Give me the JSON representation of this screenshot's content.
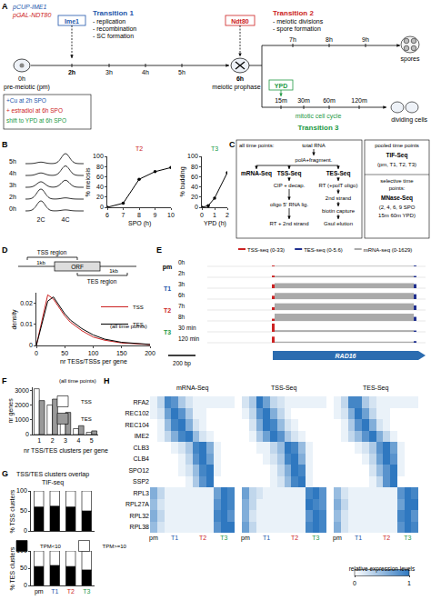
{
  "panel_letters": [
    "A",
    "B",
    "C",
    "D",
    "E",
    "F",
    "G",
    "H"
  ],
  "group_colors": {
    "pm": "#000000",
    "T1": "#2255aa",
    "T2": "#cc2222",
    "T3": "#229944"
  },
  "diagram_A": {
    "constructs": [
      {
        "text": "pCUP-IME1",
        "color": "#2255aa"
      },
      {
        "text": "pGAL-NDT80",
        "color": "#cc2222"
      }
    ],
    "ime1": {
      "text": "Ime1",
      "color": "#2255aa"
    },
    "ndt80": {
      "text": "Ndt80",
      "color": "#cc2222"
    },
    "ypd": {
      "text": "YPD",
      "color": "#229944"
    },
    "transition1": {
      "title": "Transition 1",
      "color": "#2255aa",
      "items": [
        "- replication",
        "- recombination",
        "- SC formation"
      ]
    },
    "transition2": {
      "title": "Transition 2",
      "color": "#cc2222",
      "items": [
        "- meiotic divisions",
        "- spore formation"
      ]
    },
    "transition3": {
      "title": "Transition 3",
      "color": "#229944",
      "items": [
        "mitotic cell cycle"
      ]
    },
    "main_times": [
      "0h",
      "2h",
      "3h",
      "4h",
      "5h",
      "6h"
    ],
    "meiotic_times": [
      "7h",
      "8h",
      "9h"
    ],
    "mitotic_times": [
      "15m",
      "30m",
      "60m",
      "120m"
    ],
    "stage_labels": [
      "pre-meiotic (pm)",
      "meiotic prophase",
      "spores",
      "dividing cells"
    ],
    "treatments": [
      {
        "text": "+Cu at 2h SPO",
        "color": "#2255aa"
      },
      {
        "text": "+ estradiol at 6h SPO",
        "color": "#cc2222"
      },
      {
        "text": "shift to YPD at 6h SPO",
        "color": "#229944"
      }
    ]
  },
  "diagram_B": {
    "peak_labels": [
      "2C",
      "4C"
    ],
    "rows": [
      {
        "time": "5h",
        "2C": 0.15,
        "4C": 1
      },
      {
        "time": "4h",
        "2C": 0.25,
        "4C": 0.95
      },
      {
        "time": "3h",
        "2C": 0.55,
        "4C": 0.7
      },
      {
        "time": "2h",
        "2C": 1,
        "4C": 0.12
      },
      {
        "time": "0h",
        "2C": 1,
        "4C": 0.1
      }
    ]
  },
  "diagram_C": {
    "all_label": "all time points:",
    "total": "total RNA",
    "fragment": "polA+fragment.",
    "methods": [
      {
        "name": "mRNA-Seq"
      },
      {
        "name": "TSS-Seq",
        "steps": [
          "CIP + decap.",
          "oligo 5' RNA lig.",
          "RT + 2nd strand"
        ]
      },
      {
        "name": "TES-Seq",
        "steps": [
          "RT (+polT oligo)",
          "2nd strand",
          "biotin capture",
          "GsuI elution"
        ]
      }
    ],
    "pooled": {
      "label": "pooled time points",
      "method": "TIF-Seq",
      "detail": [
        "(pm, T1, T2, T3)"
      ]
    },
    "selective": {
      "label": "selective time points:",
      "method": "MNase-Seq",
      "detail": [
        "(2, 4, 6, 9 SPO",
        "15m 60m YPD)"
      ]
    }
  },
  "diagram_D": {
    "tss_region": "TSS region",
    "tes_region": "TES region",
    "orf": "ORF",
    "distances": [
      "1kb",
      "1kb"
    ]
  },
  "diagram_E": {
    "legend": [
      {
        "label": "TSS-seq (0-33)",
        "range": [
          0,
          33
        ],
        "color": "#cc2222"
      },
      {
        "label": "TES-seq (0-5.6)",
        "range": [
          0,
          5.6
        ],
        "color": "#1f2f8f"
      },
      {
        "label": "mRNA-seq (0-1629)",
        "range": [
          0,
          1629
        ],
        "color": "#aaaaaa"
      }
    ],
    "tracks": [
      {
        "group": "pm",
        "time": "0h",
        "values": [
          3,
          0.5,
          80
        ]
      },
      {
        "group": "pm",
        "time": "2h",
        "values": [
          6,
          0.8,
          250
        ]
      },
      {
        "group": "T1",
        "time": "3h",
        "values": [
          14,
          2.5,
          900
        ]
      },
      {
        "group": "T1",
        "time": "6h",
        "values": [
          12,
          3,
          1100
        ]
      },
      {
        "group": "T2",
        "time": "7h",
        "values": [
          10,
          2.8,
          1200
        ]
      },
      {
        "group": "T2",
        "time": "8h",
        "values": [
          8,
          2.5,
          1300
        ]
      },
      {
        "group": "T3",
        "time": "30 min",
        "values": [
          30,
          0.8,
          300
        ]
      },
      {
        "group": "T3",
        "time": "120 min",
        "values": [
          22,
          1,
          200
        ]
      }
    ],
    "gene": "RAD16",
    "gene_color": "#2b6cb0",
    "scale_bar": "200 bp"
  },
  "chart_data": [
    {
      "type": "line",
      "title": "T2",
      "x": [
        6,
        7,
        8,
        9,
        10
      ],
      "values": [
        0,
        8,
        55,
        70,
        78
      ],
      "color": "#000000",
      "marker": "circle",
      "xlim": [
        6,
        10
      ],
      "xticks": [
        6,
        7,
        8,
        9,
        10
      ],
      "ylim": [
        0,
        100
      ],
      "yticks": [
        0,
        20,
        40,
        60,
        80,
        100
      ],
      "x_label": "SPO (h)",
      "y_label": "% meiosis"
    },
    {
      "type": "line",
      "title": "T3",
      "x": [
        0,
        0.5,
        1,
        2
      ],
      "values": [
        0,
        3,
        18,
        68
      ],
      "color": "#000000",
      "marker": "circle",
      "xlim": [
        0,
        2
      ],
      "xticks": [
        0,
        1,
        2
      ],
      "ylim": [
        0,
        100
      ],
      "yticks": [
        0,
        20,
        40,
        60,
        80,
        100
      ],
      "x_label": "YPD (h)",
      "y_label": "% budding"
    },
    {
      "type": "line",
      "x": [
        0,
        10,
        20,
        30,
        40,
        50,
        60,
        80,
        100,
        120,
        150,
        200
      ],
      "series": [
        {
          "name": "TSS",
          "color": "#cc2222",
          "values": [
            0,
            0.012,
            0.024,
            0.022,
            0.018,
            0.014,
            0.011,
            0.007,
            0.004,
            0.0025,
            0.0012,
            0.0004
          ]
        },
        {
          "name": "TES",
          "color": "#000000",
          "values": [
            0,
            0.01,
            0.021,
            0.023,
            0.019,
            0.015,
            0.012,
            0.008,
            0.005,
            0.003,
            0.0015,
            0.0005
          ]
        }
      ],
      "annotations": [
        "(all time points)"
      ],
      "xlim": [
        0,
        200
      ],
      "xticks": [
        0,
        50,
        100,
        150,
        200
      ],
      "ylim": [
        0,
        0.025
      ],
      "yticks": [
        0,
        0.01,
        0.02
      ],
      "x_label": "nr TESs/TSSs per gene",
      "y_label": "density",
      "legend": "top-right"
    },
    {
      "type": "bar",
      "categories": [
        "1",
        "2",
        "3",
        "4",
        "5"
      ],
      "series": [
        {
          "name": "TSS",
          "color": "#ffffff",
          "values": [
            3100,
            2000,
            1000,
            400,
            150
          ]
        },
        {
          "name": "TES",
          "color": "#999999",
          "values": [
            2300,
            2400,
            1500,
            600,
            250
          ]
        }
      ],
      "annotations": [
        "(all time points)"
      ],
      "ylim": [
        0,
        3200
      ],
      "yticks": [
        0,
        1000,
        2000,
        3000
      ],
      "x_label": "nr TSS/TES clusters per gene",
      "y_label": "nr genes",
      "legend": "top-right"
    },
    {
      "type": "bar",
      "stacked": true,
      "title": "TSS/TES clusters overlap TIF-seq",
      "categories": [
        "pm",
        "T1",
        "T2",
        "T3"
      ],
      "series": [
        {
          "name": "TPM<10",
          "color": "#000000",
          "values": [
            60,
            62,
            60,
            50
          ]
        },
        {
          "name": "TPM>=10",
          "color": "#ffffff",
          "values": [
            40,
            38,
            40,
            50
          ]
        }
      ],
      "ylim": [
        0,
        100
      ],
      "yticks": [
        0,
        50,
        100
      ],
      "y_label": "% TSS clusters",
      "tick_labels": "y",
      "legend": "bottom"
    },
    {
      "type": "bar",
      "stacked": true,
      "categories": [
        "pm",
        "T1",
        "T2",
        "T3"
      ],
      "series": [
        {
          "name": "TPM<10",
          "color": "#000000",
          "values": [
            55,
            58,
            55,
            45
          ]
        },
        {
          "name": "TPM>=10",
          "color": "#ffffff",
          "values": [
            45,
            42,
            45,
            55
          ]
        }
      ],
      "ylim": [
        0,
        100
      ],
      "yticks": [
        0,
        50,
        100
      ],
      "y_label": "% TES clusters"
    },
    {
      "type": "heatmap",
      "title": "mRNA-Seq",
      "x": [
        "pm",
        null,
        null,
        "T1",
        null,
        null,
        null,
        "T2",
        null,
        null,
        "T3",
        null
      ],
      "y": [
        "RFA2",
        "REC102",
        "REC104",
        "IME2",
        "CLB3",
        "CLB4",
        "SPO12",
        "SSP2",
        "RPL3",
        "RPL27A",
        "RPL32",
        "RPL38"
      ],
      "z": [
        [
          0.1,
          0.3,
          0.9,
          0.8,
          0.4,
          0.2,
          0.1,
          0.1,
          0.1,
          0.1,
          0.1,
          0.1
        ],
        [
          0.1,
          0.2,
          0.7,
          1,
          0.8,
          0.4,
          0.1,
          0.1,
          0,
          0,
          0,
          0
        ],
        [
          0,
          0.1,
          0.5,
          0.9,
          1,
          0.6,
          0.2,
          0.1,
          0,
          0,
          0,
          0
        ],
        [
          0,
          0.1,
          0.3,
          0.6,
          0.9,
          1,
          0.5,
          0.2,
          0.1,
          0,
          0,
          0
        ],
        [
          0,
          0,
          0,
          0.1,
          0.2,
          0.4,
          0.9,
          1,
          0.6,
          0.1,
          0,
          0
        ],
        [
          0,
          0,
          0,
          0,
          0.1,
          0.3,
          0.8,
          1,
          0.7,
          0.1,
          0,
          0
        ],
        [
          0,
          0,
          0,
          0,
          0.1,
          0.2,
          0.5,
          0.9,
          1,
          0.1,
          0,
          0
        ],
        [
          0,
          0,
          0,
          0,
          0,
          0.1,
          0.4,
          0.8,
          1,
          0,
          0,
          0
        ],
        [
          0.6,
          0.3,
          0.1,
          0.1,
          0.1,
          0.1,
          0.1,
          0.1,
          0.1,
          0.7,
          1,
          0.9
        ],
        [
          0.5,
          0.2,
          0.1,
          0.1,
          0.1,
          0.1,
          0.1,
          0.1,
          0.1,
          0.8,
          1,
          0.9
        ],
        [
          0.6,
          0.3,
          0.1,
          0.1,
          0.1,
          0.1,
          0.1,
          0.1,
          0.1,
          0.9,
          1,
          0.8
        ],
        [
          0.5,
          0.2,
          0.1,
          0.1,
          0.1,
          0.1,
          0.1,
          0.1,
          0.1,
          0.8,
          1,
          1
        ]
      ],
      "zlim": [
        0,
        1
      ],
      "zticks": [
        0,
        1
      ],
      "colors": [
        "#ffffff",
        "#2f78c0"
      ]
    },
    {
      "type": "heatmap",
      "title": "TSS-Seq",
      "x": [
        "pm",
        null,
        null,
        "T1",
        null,
        null,
        null,
        "T2",
        null,
        null,
        "T3",
        null
      ],
      "y": [
        "RFA2",
        "REC102",
        "REC104",
        "IME2",
        "CLB3",
        "CLB4",
        "SPO12",
        "SSP2",
        "RPL3",
        "RPL27A",
        "RPL32",
        "RPL38"
      ],
      "z": [
        [
          0.2,
          0.4,
          1,
          0.7,
          0.3,
          0.2,
          0.1,
          0.1,
          0.1,
          0.1,
          0.1,
          0.1
        ],
        [
          0.1,
          0.3,
          0.8,
          1,
          0.6,
          0.3,
          0.1,
          0,
          0,
          0,
          0,
          0
        ],
        [
          0,
          0.2,
          0.6,
          1,
          0.9,
          0.5,
          0.2,
          0.1,
          0,
          0,
          0,
          0
        ],
        [
          0,
          0.1,
          0.4,
          0.7,
          1,
          0.8,
          0.4,
          0.2,
          0.1,
          0,
          0,
          0
        ],
        [
          0,
          0,
          0.1,
          0.1,
          0.3,
          0.5,
          1,
          0.9,
          0.5,
          0.1,
          0,
          0
        ],
        [
          0,
          0,
          0,
          0.1,
          0.2,
          0.4,
          0.9,
          1,
          0.6,
          0.1,
          0,
          0
        ],
        [
          0,
          0,
          0,
          0,
          0.1,
          0.3,
          0.6,
          1,
          0.9,
          0.1,
          0,
          0
        ],
        [
          0,
          0,
          0,
          0,
          0.1,
          0.2,
          0.5,
          0.9,
          1,
          0.1,
          0,
          0
        ],
        [
          0.7,
          0.3,
          0.2,
          0.1,
          0.1,
          0.1,
          0.1,
          0.1,
          0.1,
          0.9,
          1,
          0.8
        ],
        [
          0.6,
          0.3,
          0.1,
          0.1,
          0.1,
          0.1,
          0.1,
          0.1,
          0.1,
          1,
          0.9,
          0.8
        ],
        [
          0.6,
          0.2,
          0.1,
          0.1,
          0.1,
          0.1,
          0.1,
          0.1,
          0.1,
          0.8,
          1,
          0.9
        ],
        [
          0.7,
          0.3,
          0.1,
          0.1,
          0.1,
          0.1,
          0.1,
          0.1,
          0.1,
          0.9,
          1,
          0.9
        ]
      ],
      "zlim": [
        0,
        1
      ],
      "zticks": [
        0,
        1
      ],
      "colors": [
        "#ffffff",
        "#2f78c0"
      ],
      "tick_labels": "x"
    },
    {
      "type": "heatmap",
      "title": "TES-Seq",
      "x": [
        "pm",
        null,
        null,
        "T1",
        null,
        null,
        null,
        "T2",
        null,
        null,
        "T3",
        null
      ],
      "y": [
        "RFA2",
        "REC102",
        "REC104",
        "IME2",
        "CLB3",
        "CLB4",
        "SPO12",
        "SSP2",
        "RPL3",
        "RPL27A",
        "RPL32",
        "RPL38"
      ],
      "z": [
        [
          0.1,
          0.3,
          0.9,
          0.9,
          0.4,
          0.2,
          0.1,
          0.1,
          0.1,
          0.1,
          0.1,
          0.1
        ],
        [
          0.1,
          0.2,
          0.6,
          1,
          0.7,
          0.3,
          0.1,
          0.1,
          0,
          0,
          0,
          0
        ],
        [
          0,
          0.1,
          0.4,
          0.8,
          1,
          0.6,
          0.2,
          0.1,
          0,
          0,
          0,
          0
        ],
        [
          0,
          0.1,
          0.3,
          0.5,
          0.8,
          1,
          0.6,
          0.3,
          0.1,
          0,
          0,
          0
        ],
        [
          0,
          0,
          0,
          0.1,
          0.2,
          0.4,
          0.8,
          1,
          0.7,
          0.1,
          0,
          0
        ],
        [
          0,
          0,
          0,
          0,
          0.1,
          0.3,
          0.7,
          1,
          0.8,
          0.1,
          0,
          0
        ],
        [
          0,
          0,
          0,
          0,
          0,
          0.2,
          0.5,
          0.8,
          1,
          0.1,
          0,
          0
        ],
        [
          0,
          0,
          0,
          0,
          0,
          0.1,
          0.3,
          0.8,
          1,
          0,
          0,
          0
        ],
        [
          0.5,
          0.2,
          0.1,
          0.1,
          0.1,
          0.1,
          0.1,
          0.1,
          0.1,
          0.8,
          1,
          0.9
        ],
        [
          0.6,
          0.3,
          0.1,
          0.1,
          0.1,
          0.1,
          0.1,
          0.1,
          0.1,
          0.7,
          1,
          1
        ],
        [
          0.5,
          0.2,
          0.1,
          0.1,
          0.1,
          0.1,
          0.1,
          0.1,
          0.1,
          0.9,
          1,
          0.8
        ],
        [
          0.6,
          0.2,
          0.1,
          0.1,
          0.1,
          0.1,
          0.1,
          0.1,
          0.1,
          0.8,
          1,
          0.9
        ]
      ],
      "zlim": [
        0,
        1
      ],
      "zticks": [
        0,
        1
      ],
      "colors": [
        "#ffffff",
        "#2f78c0"
      ],
      "tick_labels": "x",
      "colorbar_label": "relative expression levels"
    }
  ]
}
